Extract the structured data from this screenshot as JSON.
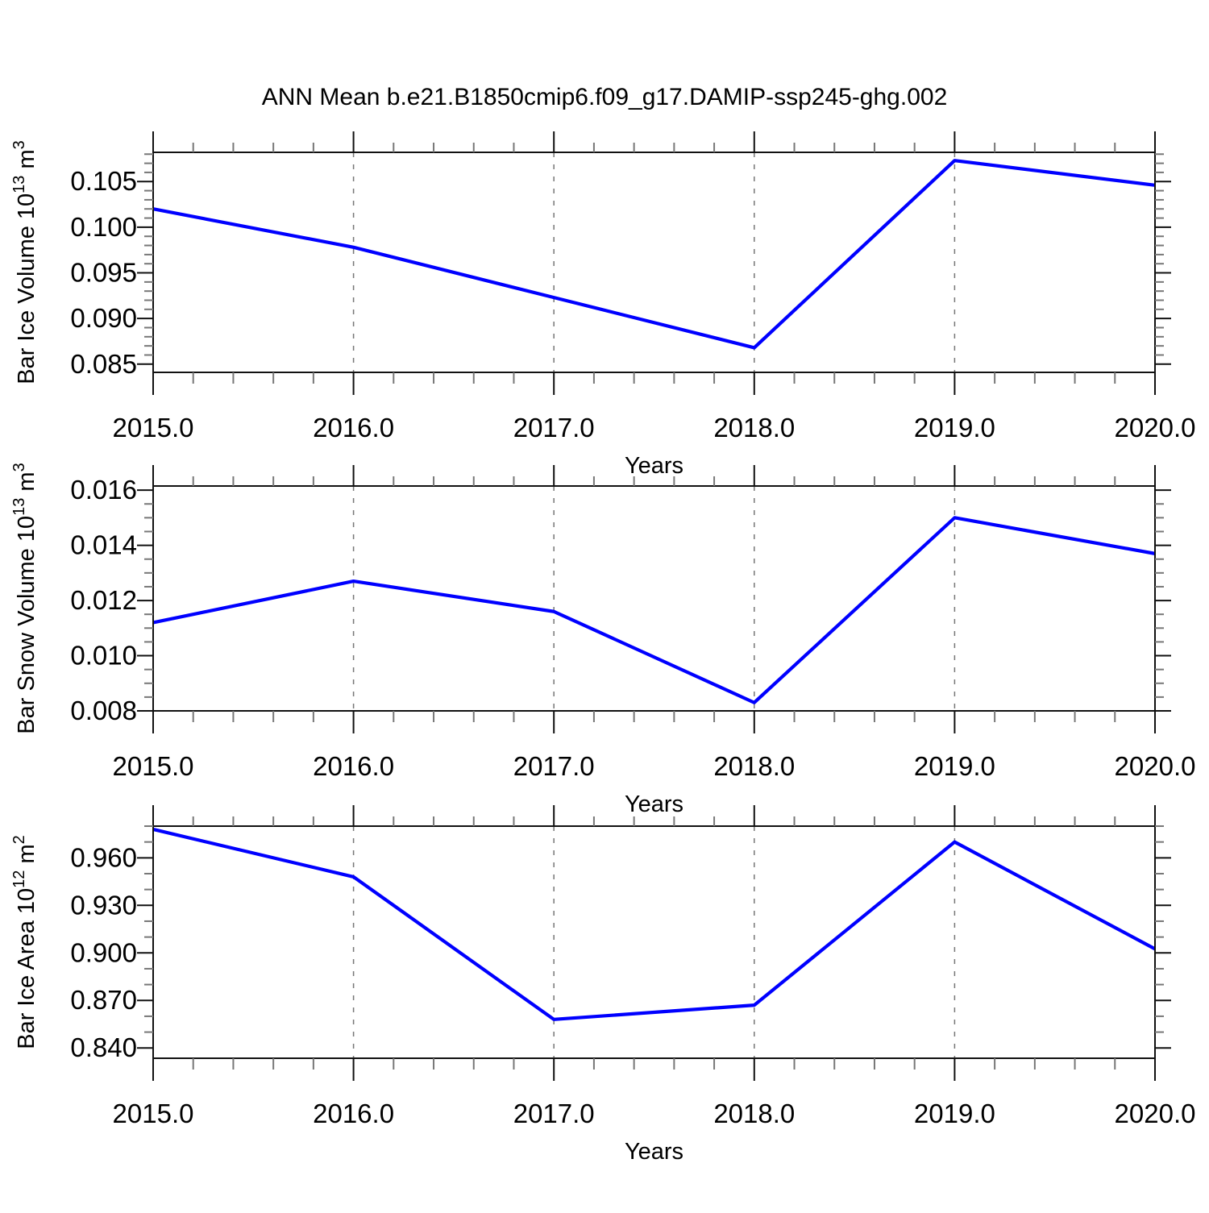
{
  "title": "ANN Mean b.e21.B1850cmip6.f09_g17.DAMIP-ssp245-ghg.002",
  "colors": {
    "line": "#0000ff",
    "grid": "#777777",
    "axis": "#111111",
    "minor_tick": "#777777",
    "text": "#000000",
    "background": "#ffffff"
  },
  "chart_data": [
    {
      "type": "line",
      "panel": "ice-volume",
      "x": [
        2015,
        2016,
        2017,
        2018,
        2019,
        2020
      ],
      "values": [
        0.102,
        0.0978,
        0.0923,
        0.0868,
        0.1073,
        0.1046
      ],
      "xlabel": "Years",
      "ylabel_parts": {
        "prefix": "Bar Ice Volume 10",
        "exponent": "13",
        "unit": " m",
        "unit_exponent": "3"
      },
      "xlim": [
        2015,
        2020
      ],
      "ylim": [
        0.0841,
        0.1082
      ],
      "yticks": [
        0.085,
        0.09,
        0.095,
        0.1,
        0.105
      ],
      "ytick_labels": [
        "0.085",
        "0.090",
        "0.095",
        "0.100",
        "0.105"
      ],
      "yminor_step": 0.001,
      "xtick_labels": [
        "2015.0",
        "2016.0",
        "2017.0",
        "2018.0",
        "2019.0",
        "2020.0"
      ],
      "xminor_step": 0.2,
      "grid": true,
      "legend": "none"
    },
    {
      "type": "line",
      "panel": "snow-volume",
      "x": [
        2015,
        2016,
        2017,
        2018,
        2019,
        2020
      ],
      "values": [
        0.0112,
        0.0127,
        0.0116,
        0.0083,
        0.015,
        0.0137
      ],
      "xlabel": "Years",
      "ylabel_parts": {
        "prefix": "Bar Snow Volume 10",
        "exponent": "13",
        "unit": " m",
        "unit_exponent": "3"
      },
      "xlim": [
        2015,
        2020
      ],
      "ylim": [
        0.008,
        0.01615
      ],
      "yticks": [
        0.008,
        0.01,
        0.012,
        0.014,
        0.016
      ],
      "ytick_labels": [
        "0.008",
        "0.010",
        "0.012",
        "0.014",
        "0.016"
      ],
      "yminor_step": 0.0005,
      "xtick_labels": [
        "2015.0",
        "2016.0",
        "2017.0",
        "2018.0",
        "2019.0",
        "2020.0"
      ],
      "xminor_step": 0.2,
      "grid": true,
      "legend": "none"
    },
    {
      "type": "line",
      "panel": "ice-area",
      "x": [
        2015,
        2016,
        2017,
        2018,
        2019,
        2020
      ],
      "values": [
        0.978,
        0.948,
        0.858,
        0.867,
        0.97,
        0.9025
      ],
      "xlabel": "Years",
      "ylabel_parts": {
        "prefix": "Bar Ice Area 10",
        "exponent": "12",
        "unit": " m",
        "unit_exponent": "2"
      },
      "xlim": [
        2015,
        2020
      ],
      "ylim": [
        0.8335,
        0.98
      ],
      "yticks": [
        0.84,
        0.87,
        0.9,
        0.93,
        0.96
      ],
      "ytick_labels": [
        "0.840",
        "0.870",
        "0.900",
        "0.930",
        "0.960"
      ],
      "yminor_step": 0.01,
      "xtick_labels": [
        "2015.0",
        "2016.0",
        "2017.0",
        "2018.0",
        "2019.0",
        "2020.0"
      ],
      "xminor_step": 0.2,
      "grid": true,
      "legend": "none"
    }
  ]
}
